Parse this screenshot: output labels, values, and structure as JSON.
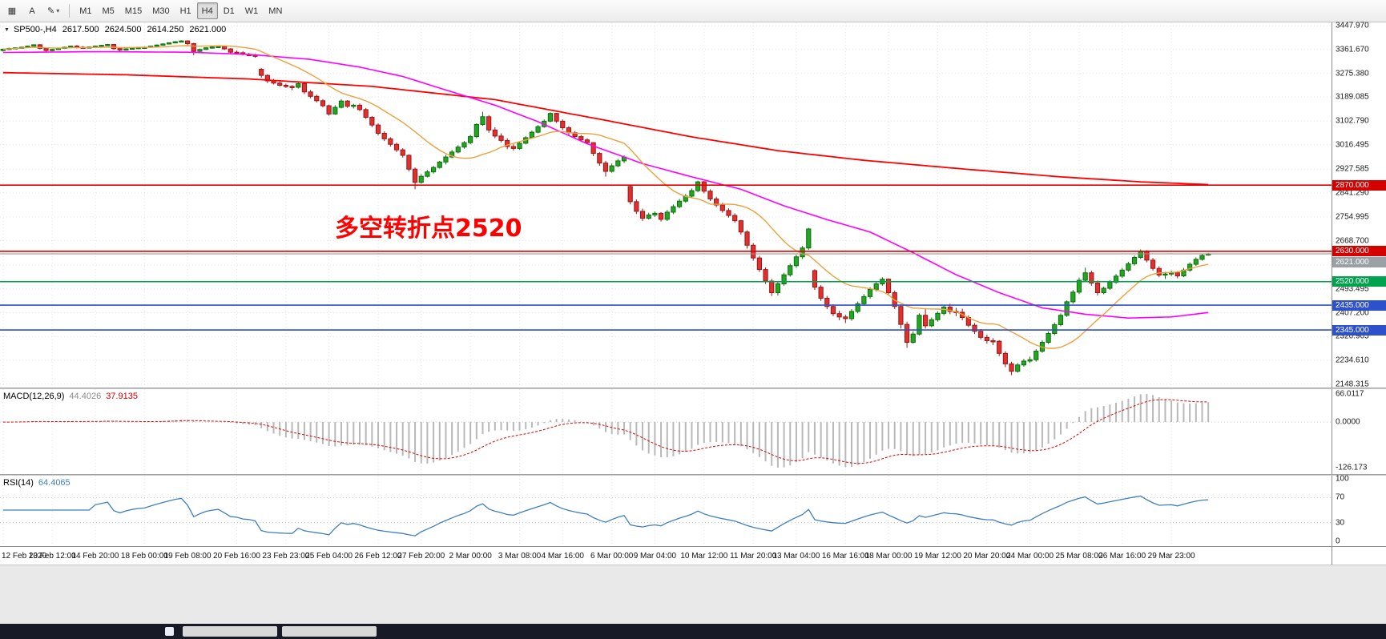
{
  "toolbar": {
    "cursor_button_label": "A",
    "timeframes": [
      {
        "label": "M1"
      },
      {
        "label": "M5"
      },
      {
        "label": "M15"
      },
      {
        "label": "M30"
      },
      {
        "label": "H1"
      },
      {
        "label": "H4",
        "active": true
      },
      {
        "label": "D1"
      },
      {
        "label": "W1"
      },
      {
        "label": "MN"
      }
    ]
  },
  "chart": {
    "title_symbol": "SP500-,H4",
    "ohlc": {
      "open": "2617.500",
      "high": "2624.500",
      "low": "2614.250",
      "close": "2621.000"
    },
    "annotation": {
      "text": "多空转折点2520",
      "color": "#ff0000"
    }
  },
  "chart_data": {
    "type": "candlestick",
    "symbol": "SP500-",
    "timeframe": "H4",
    "ylim": [
      2148.315,
      3447.97
    ],
    "price_axis_labels": [
      "3447.970",
      "3361.670",
      "3275.380",
      "3189.085",
      "3102.790",
      "3016.495",
      "2927.585",
      "2841.290",
      "2754.995",
      "2668.700",
      "2579.790",
      "2493.495",
      "2407.200",
      "2320.905",
      "2234.610",
      "2148.315"
    ],
    "time_labels": [
      "12 Feb 2020",
      "13 Feb 12:00",
      "14 Feb 20:00",
      "18 Feb 00:00",
      "19 Feb 08:00",
      "20 Feb 16:00",
      "23 Feb 23:00",
      "25 Feb 04:00",
      "26 Feb 12:00",
      "27 Feb 20:00",
      "2 Mar 00:00",
      "3 Mar 08:00",
      "4 Mar 16:00",
      "6 Mar 00:00",
      "9 Mar 04:00",
      "10 Mar 12:00",
      "11 Mar 20:00",
      "13 Mar 04:00",
      "16 Mar 16:00",
      "18 Mar 00:00",
      "19 Mar 12:00",
      "20 Mar 20:00",
      "24 Mar 00:00",
      "25 Mar 08:00",
      "26 Mar 16:00",
      "29 Mar 23:00"
    ],
    "hlines": [
      {
        "price": 2870,
        "label": "2870.000",
        "color": "#e10000",
        "badge": "#d40000",
        "width": 1.6
      },
      {
        "price": 2630,
        "label": "2630.000",
        "color": "#e10000",
        "badge": "#d40000",
        "width": 1.6
      },
      {
        "price": 2621,
        "label": "2621.000",
        "color": "#8f8f8f",
        "badge": "#9aa0a6",
        "width": 1,
        "thin": true
      },
      {
        "price": 2520,
        "label": "2520.000",
        "color": "#00a24e",
        "badge": "#00a24e",
        "width": 1.6
      },
      {
        "price": 2435,
        "label": "2435.000",
        "color": "#2d50cc",
        "badge": "#2d50cc",
        "width": 1.6
      },
      {
        "price": 2345,
        "label": "2345.000",
        "color": "#2d50cc",
        "badge": "#2d50cc",
        "width": 1.6
      }
    ],
    "colors": {
      "up": "#23a623",
      "up_border": "#0c6e0c",
      "down": "#e03030",
      "down_border": "#9c1515",
      "ma_fast": "#eba13c",
      "ma_mid": "#ff00ff",
      "ma_slow": "#ff0000",
      "grid": "#e4e4e4"
    },
    "ma_mid_points": [
      [
        0,
        3351
      ],
      [
        15,
        3354
      ],
      [
        30,
        3352
      ],
      [
        40,
        3344
      ],
      [
        50,
        3326
      ],
      [
        58,
        3298
      ],
      [
        65,
        3264
      ],
      [
        72,
        3215
      ],
      [
        80,
        3160
      ],
      [
        87,
        3100
      ],
      [
        95,
        3020
      ],
      [
        104,
        2948
      ],
      [
        112,
        2900
      ],
      [
        120,
        2855
      ],
      [
        127,
        2795
      ],
      [
        134,
        2745
      ],
      [
        141,
        2700
      ],
      [
        148,
        2625
      ],
      [
        155,
        2545
      ],
      [
        162,
        2480
      ],
      [
        169,
        2425
      ],
      [
        176,
        2402
      ],
      [
        183,
        2388
      ],
      [
        190,
        2392
      ],
      [
        196,
        2408
      ]
    ],
    "ma_slow_points": [
      [
        0,
        3278
      ],
      [
        20,
        3270
      ],
      [
        40,
        3255
      ],
      [
        60,
        3228
      ],
      [
        80,
        3180
      ],
      [
        98,
        3105
      ],
      [
        112,
        3045
      ],
      [
        126,
        2995
      ],
      [
        140,
        2960
      ],
      [
        157,
        2927
      ],
      [
        172,
        2900
      ],
      [
        185,
        2882
      ],
      [
        196,
        2872
      ]
    ],
    "candles": [
      [
        3358,
        3365,
        3355,
        3363
      ],
      [
        3363,
        3368,
        3360,
        3366
      ],
      [
        3366,
        3370,
        3363,
        3368
      ],
      [
        3368,
        3372,
        3365,
        3370
      ],
      [
        3370,
        3376,
        3368,
        3374
      ],
      [
        3374,
        3380,
        3372,
        3379
      ],
      [
        3379,
        3381,
        3362,
        3366
      ],
      [
        3366,
        3369,
        3352,
        3358
      ],
      [
        3358,
        3364,
        3355,
        3362
      ],
      [
        3362,
        3368,
        3360,
        3366
      ],
      [
        3366,
        3372,
        3364,
        3370
      ],
      [
        3370,
        3376,
        3368,
        3374
      ],
      [
        3374,
        3378,
        3366,
        3370
      ],
      [
        3370,
        3374,
        3365,
        3368
      ],
      [
        3368,
        3373,
        3366,
        3371
      ],
      [
        3371,
        3376,
        3369,
        3374
      ],
      [
        3374,
        3379,
        3372,
        3377
      ],
      [
        3377,
        3382,
        3375,
        3380
      ],
      [
        3380,
        3382,
        3360,
        3365
      ],
      [
        3365,
        3368,
        3355,
        3360
      ],
      [
        3360,
        3366,
        3358,
        3364
      ],
      [
        3364,
        3369,
        3362,
        3367
      ],
      [
        3367,
        3371,
        3364,
        3369
      ],
      [
        3369,
        3373,
        3366,
        3370
      ],
      [
        3370,
        3376,
        3368,
        3374
      ],
      [
        3374,
        3380,
        3372,
        3378
      ],
      [
        3378,
        3384,
        3376,
        3382
      ],
      [
        3382,
        3388,
        3380,
        3386
      ],
      [
        3386,
        3392,
        3384,
        3390
      ],
      [
        3390,
        3395,
        3388,
        3393
      ],
      [
        3393,
        3395,
        3378,
        3383
      ],
      [
        3383,
        3386,
        3341,
        3355
      ],
      [
        3355,
        3365,
        3350,
        3362
      ],
      [
        3362,
        3370,
        3360,
        3368
      ],
      [
        3368,
        3374,
        3365,
        3371
      ],
      [
        3371,
        3376,
        3369,
        3373
      ],
      [
        3373,
        3375,
        3360,
        3364
      ],
      [
        3364,
        3367,
        3348,
        3352
      ],
      [
        3352,
        3358,
        3345,
        3350
      ],
      [
        3350,
        3355,
        3340,
        3344
      ],
      [
        3344,
        3350,
        3338,
        3342
      ],
      [
        3342,
        3346,
        3332,
        3337
      ],
      [
        3290,
        3295,
        3260,
        3268
      ],
      [
        3268,
        3272,
        3240,
        3248
      ],
      [
        3248,
        3255,
        3235,
        3240
      ],
      [
        3240,
        3246,
        3228,
        3232
      ],
      [
        3232,
        3238,
        3222,
        3228
      ],
      [
        3228,
        3232,
        3214,
        3225
      ],
      [
        3225,
        3245,
        3220,
        3238
      ],
      [
        3238,
        3242,
        3200,
        3208
      ],
      [
        3208,
        3215,
        3185,
        3192
      ],
      [
        3192,
        3198,
        3170,
        3176
      ],
      [
        3176,
        3182,
        3152,
        3158
      ],
      [
        3158,
        3162,
        3122,
        3128
      ],
      [
        3128,
        3160,
        3125,
        3152
      ],
      [
        3152,
        3182,
        3148,
        3175
      ],
      [
        3175,
        3178,
        3150,
        3156
      ],
      [
        3156,
        3165,
        3148,
        3160
      ],
      [
        3160,
        3166,
        3138,
        3144
      ],
      [
        3144,
        3150,
        3110,
        3116
      ],
      [
        3116,
        3120,
        3080,
        3088
      ],
      [
        3088,
        3094,
        3050,
        3058
      ],
      [
        3058,
        3065,
        3030,
        3038
      ],
      [
        3038,
        3044,
        3010,
        3018
      ],
      [
        3018,
        3024,
        2990,
        2998
      ],
      [
        2998,
        3004,
        2970,
        2978
      ],
      [
        2978,
        2982,
        2920,
        2928
      ],
      [
        2928,
        2934,
        2855,
        2880
      ],
      [
        2880,
        2910,
        2875,
        2902
      ],
      [
        2902,
        2925,
        2898,
        2918
      ],
      [
        2918,
        2940,
        2912,
        2934
      ],
      [
        2934,
        2958,
        2930,
        2954
      ],
      [
        2954,
        2980,
        2945,
        2972
      ],
      [
        2972,
        2998,
        2968,
        2990
      ],
      [
        2990,
        3015,
        2985,
        3008
      ],
      [
        3008,
        3030,
        3002,
        3024
      ],
      [
        3024,
        3052,
        3018,
        3046
      ],
      [
        3046,
        3094,
        3040,
        3090
      ],
      [
        3090,
        3136,
        3085,
        3118
      ],
      [
        3118,
        3124,
        3060,
        3070
      ],
      [
        3070,
        3080,
        3040,
        3048
      ],
      [
        3048,
        3058,
        3025,
        3032
      ],
      [
        3032,
        3040,
        3000,
        3010
      ],
      [
        3010,
        3018,
        2995,
        3003
      ],
      [
        3003,
        3028,
        2998,
        3022
      ],
      [
        3022,
        3048,
        3018,
        3042
      ],
      [
        3042,
        3068,
        3038,
        3062
      ],
      [
        3062,
        3088,
        3058,
        3082
      ],
      [
        3082,
        3108,
        3078,
        3102
      ],
      [
        3102,
        3134,
        3098,
        3130
      ],
      [
        3130,
        3132,
        3095,
        3102
      ],
      [
        3102,
        3108,
        3070,
        3078
      ],
      [
        3078,
        3084,
        3052,
        3060
      ],
      [
        3060,
        3066,
        3040,
        3046
      ],
      [
        3046,
        3052,
        3028,
        3034
      ],
      [
        3034,
        3040,
        3018,
        3024
      ],
      [
        3024,
        3026,
        2975,
        2985
      ],
      [
        2985,
        2990,
        2940,
        2950
      ],
      [
        2950,
        2958,
        2901,
        2920
      ],
      [
        2920,
        2948,
        2915,
        2940
      ],
      [
        2940,
        2965,
        2935,
        2958
      ],
      [
        2958,
        2978,
        2950,
        2972
      ],
      [
        2865,
        2870,
        2800,
        2810
      ],
      [
        2810,
        2818,
        2765,
        2775
      ],
      [
        2775,
        2785,
        2740,
        2750
      ],
      [
        2750,
        2770,
        2745,
        2762
      ],
      [
        2762,
        2775,
        2755,
        2768
      ],
      [
        2768,
        2772,
        2738,
        2746
      ],
      [
        2746,
        2780,
        2740,
        2772
      ],
      [
        2772,
        2800,
        2765,
        2792
      ],
      [
        2792,
        2820,
        2786,
        2812
      ],
      [
        2812,
        2838,
        2806,
        2830
      ],
      [
        2830,
        2858,
        2824,
        2850
      ],
      [
        2850,
        2886,
        2844,
        2882
      ],
      [
        2882,
        2885,
        2840,
        2848
      ],
      [
        2848,
        2855,
        2812,
        2820
      ],
      [
        2820,
        2828,
        2790,
        2798
      ],
      [
        2798,
        2806,
        2770,
        2778
      ],
      [
        2778,
        2786,
        2752,
        2760
      ],
      [
        2760,
        2768,
        2734,
        2741
      ],
      [
        2741,
        2744,
        2690,
        2700
      ],
      [
        2700,
        2706,
        2640,
        2652
      ],
      [
        2652,
        2660,
        2596,
        2606
      ],
      [
        2606,
        2614,
        2555,
        2564
      ],
      [
        2564,
        2572,
        2512,
        2522
      ],
      [
        2522,
        2530,
        2468,
        2480
      ],
      [
        2480,
        2520,
        2470,
        2512
      ],
      [
        2512,
        2552,
        2505,
        2545
      ],
      [
        2545,
        2585,
        2538,
        2578
      ],
      [
        2578,
        2618,
        2570,
        2610
      ],
      [
        2610,
        2650,
        2602,
        2642
      ],
      [
        2642,
        2715,
        2635,
        2711
      ],
      [
        2560,
        2565,
        2490,
        2500
      ],
      [
        2500,
        2508,
        2450,
        2460
      ],
      [
        2460,
        2468,
        2420,
        2430
      ],
      [
        2430,
        2438,
        2395,
        2404
      ],
      [
        2404,
        2415,
        2380,
        2392
      ],
      [
        2392,
        2400,
        2370,
        2386
      ],
      [
        2386,
        2420,
        2378,
        2412
      ],
      [
        2412,
        2448,
        2405,
        2440
      ],
      [
        2440,
        2475,
        2432,
        2466
      ],
      [
        2466,
        2500,
        2458,
        2492
      ],
      [
        2492,
        2520,
        2485,
        2512
      ],
      [
        2512,
        2536,
        2505,
        2529
      ],
      [
        2529,
        2532,
        2470,
        2480
      ],
      [
        2480,
        2488,
        2420,
        2430
      ],
      [
        2430,
        2438,
        2350,
        2365
      ],
      [
        2365,
        2375,
        2280,
        2300
      ],
      [
        2300,
        2340,
        2295,
        2330
      ],
      [
        2330,
        2405,
        2325,
        2398
      ],
      [
        2398,
        2420,
        2350,
        2360
      ],
      [
        2360,
        2390,
        2355,
        2382
      ],
      [
        2382,
        2412,
        2375,
        2405
      ],
      [
        2405,
        2435,
        2398,
        2428
      ],
      [
        2428,
        2440,
        2402,
        2412
      ],
      [
        2412,
        2425,
        2395,
        2409
      ],
      [
        2409,
        2422,
        2380,
        2390
      ],
      [
        2390,
        2398,
        2355,
        2362
      ],
      [
        2362,
        2370,
        2330,
        2340
      ],
      [
        2340,
        2348,
        2310,
        2318
      ],
      [
        2318,
        2328,
        2295,
        2306
      ],
      [
        2306,
        2315,
        2290,
        2304
      ],
      [
        2304,
        2308,
        2250,
        2260
      ],
      [
        2260,
        2268,
        2210,
        2222
      ],
      [
        2222,
        2230,
        2181,
        2195
      ],
      [
        2195,
        2225,
        2190,
        2218
      ],
      [
        2218,
        2240,
        2212,
        2232
      ],
      [
        2232,
        2248,
        2225,
        2237
      ],
      [
        2237,
        2275,
        2230,
        2268
      ],
      [
        2268,
        2308,
        2262,
        2300
      ],
      [
        2300,
        2340,
        2294,
        2332
      ],
      [
        2332,
        2372,
        2326,
        2364
      ],
      [
        2364,
        2405,
        2358,
        2398
      ],
      [
        2398,
        2452,
        2392,
        2447
      ],
      [
        2447,
        2490,
        2440,
        2482
      ],
      [
        2482,
        2535,
        2475,
        2525
      ],
      [
        2525,
        2571,
        2518,
        2552
      ],
      [
        2552,
        2560,
        2505,
        2515
      ],
      [
        2515,
        2524,
        2470,
        2480
      ],
      [
        2480,
        2502,
        2474,
        2496
      ],
      [
        2496,
        2525,
        2490,
        2518
      ],
      [
        2518,
        2548,
        2512,
        2540
      ],
      [
        2540,
        2570,
        2534,
        2562
      ],
      [
        2562,
        2592,
        2556,
        2585
      ],
      [
        2585,
        2615,
        2578,
        2608
      ],
      [
        2608,
        2637,
        2602,
        2630
      ],
      [
        2630,
        2634,
        2590,
        2598
      ],
      [
        2598,
        2606,
        2560,
        2568
      ],
      [
        2568,
        2576,
        2536,
        2544
      ],
      [
        2544,
        2556,
        2530,
        2548
      ],
      [
        2548,
        2560,
        2540,
        2552
      ],
      [
        2552,
        2558,
        2532,
        2541
      ],
      [
        2541,
        2570,
        2536,
        2562
      ],
      [
        2562,
        2590,
        2556,
        2583
      ],
      [
        2583,
        2608,
        2577,
        2601
      ],
      [
        2601,
        2622,
        2596,
        2615
      ],
      [
        2617.5,
        2624.5,
        2614.25,
        2621
      ]
    ]
  },
  "macd": {
    "label": "MACD(12,26,9)",
    "main_value": "44.4026",
    "signal_value": "37.9135",
    "scale_top": "66.0117",
    "scale_zero": "0.0000",
    "scale_bottom": "-126.173",
    "params": {
      "fast": 12,
      "slow": 26,
      "signal": 9
    }
  },
  "rsi": {
    "label": "RSI(14)",
    "value": "64.4065",
    "period": 14,
    "scale": [
      "100",
      "70",
      "30",
      "0"
    ],
    "levels": [
      70,
      30
    ]
  }
}
